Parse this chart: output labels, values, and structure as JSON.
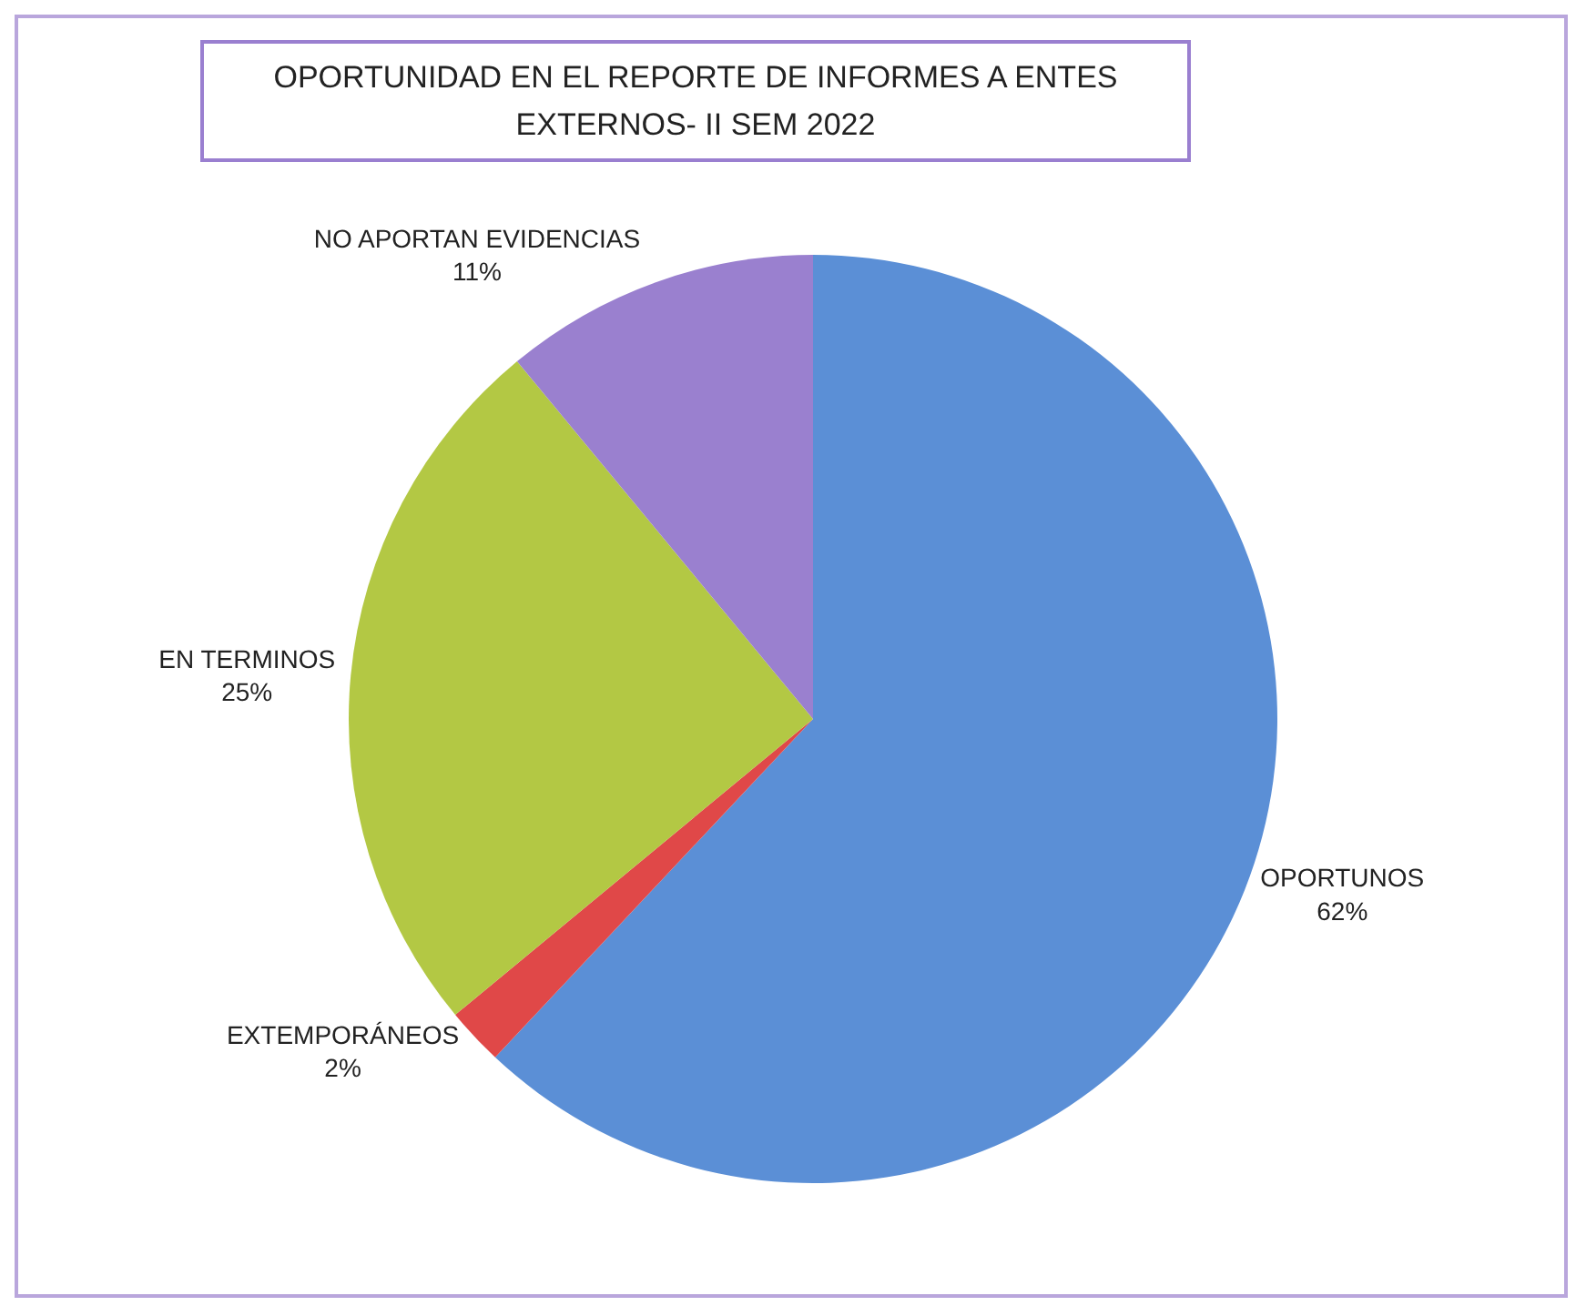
{
  "chart_data": {
    "type": "pie",
    "title": "OPORTUNIDAD EN EL REPORTE DE INFORMES A ENTES EXTERNOS- II SEM 2022",
    "categories": [
      "OPORTUNOS",
      "EXTEMPORÁNEOS",
      "EN TERMINOS",
      "NO APORTAN EVIDENCIAS"
    ],
    "values": [
      62,
      2,
      25,
      11
    ],
    "colors": [
      "#5b8fd6",
      "#e04848",
      "#b3c844",
      "#9a80cf"
    ],
    "value_labels": [
      "62%",
      "2%",
      "25%",
      "11%"
    ],
    "legend": false
  }
}
